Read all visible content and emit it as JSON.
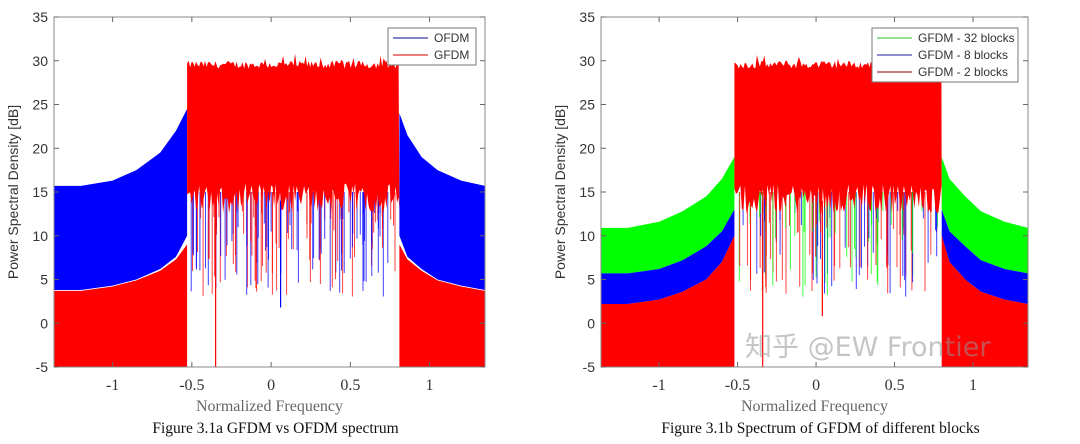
{
  "watermark": "知乎 @EW Frontier",
  "chart_data": [
    {
      "type": "area",
      "title": "",
      "caption": "Figure 3.1a GFDM vs OFDM spectrum",
      "xlabel": "Normalized Frequency",
      "ylabel": "Power Spectral Density [dB]",
      "xlim": [
        -1.37,
        1.35
      ],
      "ylim": [
        -5,
        35
      ],
      "xticks": [
        -1,
        -0.5,
        0,
        0.5,
        1
      ],
      "xtick_labels": [
        "-1",
        "-0.5",
        "0",
        "0.5",
        "1"
      ],
      "yticks": [
        -5,
        0,
        5,
        10,
        15,
        20,
        25,
        30,
        35
      ],
      "ytick_labels": [
        "-5",
        "0",
        "5",
        "10",
        "15",
        "20",
        "25",
        "30",
        "35"
      ],
      "grid": false,
      "legend": "top-right",
      "band": [
        -0.53,
        0.81
      ],
      "in_band_level_db": 29.5,
      "in_band_floor_db": 14,
      "series": [
        {
          "name": "OFDM",
          "color": "#0000ff",
          "legend_color": "#3a3aa8",
          "out_of_band_left": {
            "x": [
              -1.37,
              -1.2,
              -1.0,
              -0.85,
              -0.7,
              -0.6,
              -0.53
            ],
            "upper": [
              15.7,
              15.7,
              16.3,
              17.5,
              19.5,
              22,
              24.5
            ],
            "lower": [
              3.8,
              3.8,
              4.3,
              5.0,
              6.2,
              7.6,
              10
            ]
          },
          "out_of_band_right": {
            "x": [
              0.81,
              0.86,
              0.95,
              1.05,
              1.2,
              1.35
            ],
            "upper": [
              24,
              21.5,
              19,
              17.5,
              16.3,
              15.7
            ],
            "lower": [
              10,
              7.6,
              6.2,
              5,
              4.3,
              3.8
            ]
          }
        },
        {
          "name": "GFDM",
          "color": "#ff0000",
          "legend_color": "#e03030",
          "out_of_band_left": {
            "x": [
              -1.37,
              -1.2,
              -1.0,
              -0.85,
              -0.7,
              -0.6,
              -0.53
            ],
            "upper": [
              3.7,
              3.7,
              4.2,
              4.9,
              6,
              7.3,
              9
            ],
            "lower": [
              -5,
              -5,
              -5,
              -5,
              -5,
              -5,
              -5
            ]
          },
          "out_of_band_right": {
            "x": [
              0.81,
              0.86,
              0.95,
              1.05,
              1.2,
              1.35
            ],
            "upper": [
              9,
              7.3,
              6,
              4.9,
              4.2,
              3.7
            ],
            "lower": [
              -5,
              -5,
              -5,
              -5,
              -5,
              -5
            ]
          }
        }
      ],
      "deep_nulls": [
        {
          "series": "GFDM",
          "x": -0.35,
          "y": -5
        },
        {
          "series": "OFDM",
          "x": 0.06,
          "y": 1.8
        }
      ]
    },
    {
      "type": "area",
      "title": "",
      "caption": "Figure 3.1b Spectrum of GFDM of different blocks",
      "xlabel": "Normalized Frequency",
      "ylabel": "Power Spectral Density [dB]",
      "xlim": [
        -1.37,
        1.35
      ],
      "ylim": [
        -5,
        35
      ],
      "xticks": [
        -1,
        -0.5,
        0,
        0.5,
        1
      ],
      "xtick_labels": [
        "-1",
        "-0.5",
        "0",
        "0.5",
        "1"
      ],
      "yticks": [
        -5,
        0,
        5,
        10,
        15,
        20,
        25,
        30,
        35
      ],
      "ytick_labels": [
        "-5",
        "0",
        "5",
        "10",
        "15",
        "20",
        "25",
        "30",
        "35"
      ],
      "grid": false,
      "legend": "top-right",
      "band": [
        -0.52,
        0.8
      ],
      "in_band_level_db": 29.5,
      "in_band_floor_db": 14,
      "series": [
        {
          "name": "GFDM - 32 blocks",
          "color": "#00ff00",
          "legend_color": "#50d050",
          "out_of_band_left": {
            "x": [
              -1.37,
              -1.2,
              -1.0,
              -0.85,
              -0.7,
              -0.6,
              -0.52
            ],
            "upper": [
              10.9,
              10.9,
              11.6,
              12.8,
              14.5,
              16.5,
              19
            ],
            "lower": [
              5.7,
              5.7,
              6.2,
              7.2,
              8.8,
              10.5,
              13
            ]
          },
          "out_of_band_right": {
            "x": [
              0.8,
              0.85,
              0.95,
              1.05,
              1.2,
              1.35
            ],
            "upper": [
              19,
              16.5,
              14.5,
              12.8,
              11.6,
              10.9
            ],
            "lower": [
              13,
              10.5,
              8.8,
              7.2,
              6.2,
              5.7
            ]
          }
        },
        {
          "name": "GFDM - 8 blocks",
          "color": "#0000ff",
          "legend_color": "#4a4ab0",
          "out_of_band_left": {
            "x": [
              -1.37,
              -1.2,
              -1.0,
              -0.85,
              -0.7,
              -0.6,
              -0.52
            ],
            "upper": [
              5.7,
              5.7,
              6.2,
              7.2,
              8.8,
              10.5,
              13
            ],
            "lower": [
              2.2,
              2.2,
              2.7,
              3.6,
              5,
              7,
              10
            ]
          },
          "out_of_band_right": {
            "x": [
              0.8,
              0.85,
              0.95,
              1.05,
              1.2,
              1.35
            ],
            "upper": [
              13,
              10.5,
              8.8,
              7.2,
              6.2,
              5.7
            ],
            "lower": [
              10,
              7,
              5,
              3.6,
              2.7,
              2.2
            ]
          }
        },
        {
          "name": "GFDM - 2 blocks",
          "color": "#ff0000",
          "legend_color": "#b03030",
          "out_of_band_left": {
            "x": [
              -1.37,
              -1.2,
              -1.0,
              -0.85,
              -0.7,
              -0.6,
              -0.52
            ],
            "upper": [
              2.2,
              2.2,
              2.7,
              3.6,
              5,
              7,
              10
            ],
            "lower": [
              -5,
              -5,
              -5,
              -5,
              -5,
              -5,
              -5
            ]
          },
          "out_of_band_right": {
            "x": [
              0.8,
              0.85,
              0.95,
              1.05,
              1.2,
              1.35
            ],
            "upper": [
              10,
              7,
              5,
              3.6,
              2.7,
              2.2
            ],
            "lower": [
              -5,
              -5,
              -5,
              -5,
              -5,
              -5
            ]
          }
        }
      ],
      "deep_nulls": [
        {
          "series": "GFDM - 2 blocks",
          "x": -0.34,
          "y": -5
        },
        {
          "series": "GFDM - 2 blocks",
          "x": 0.04,
          "y": 0.8
        }
      ]
    }
  ]
}
